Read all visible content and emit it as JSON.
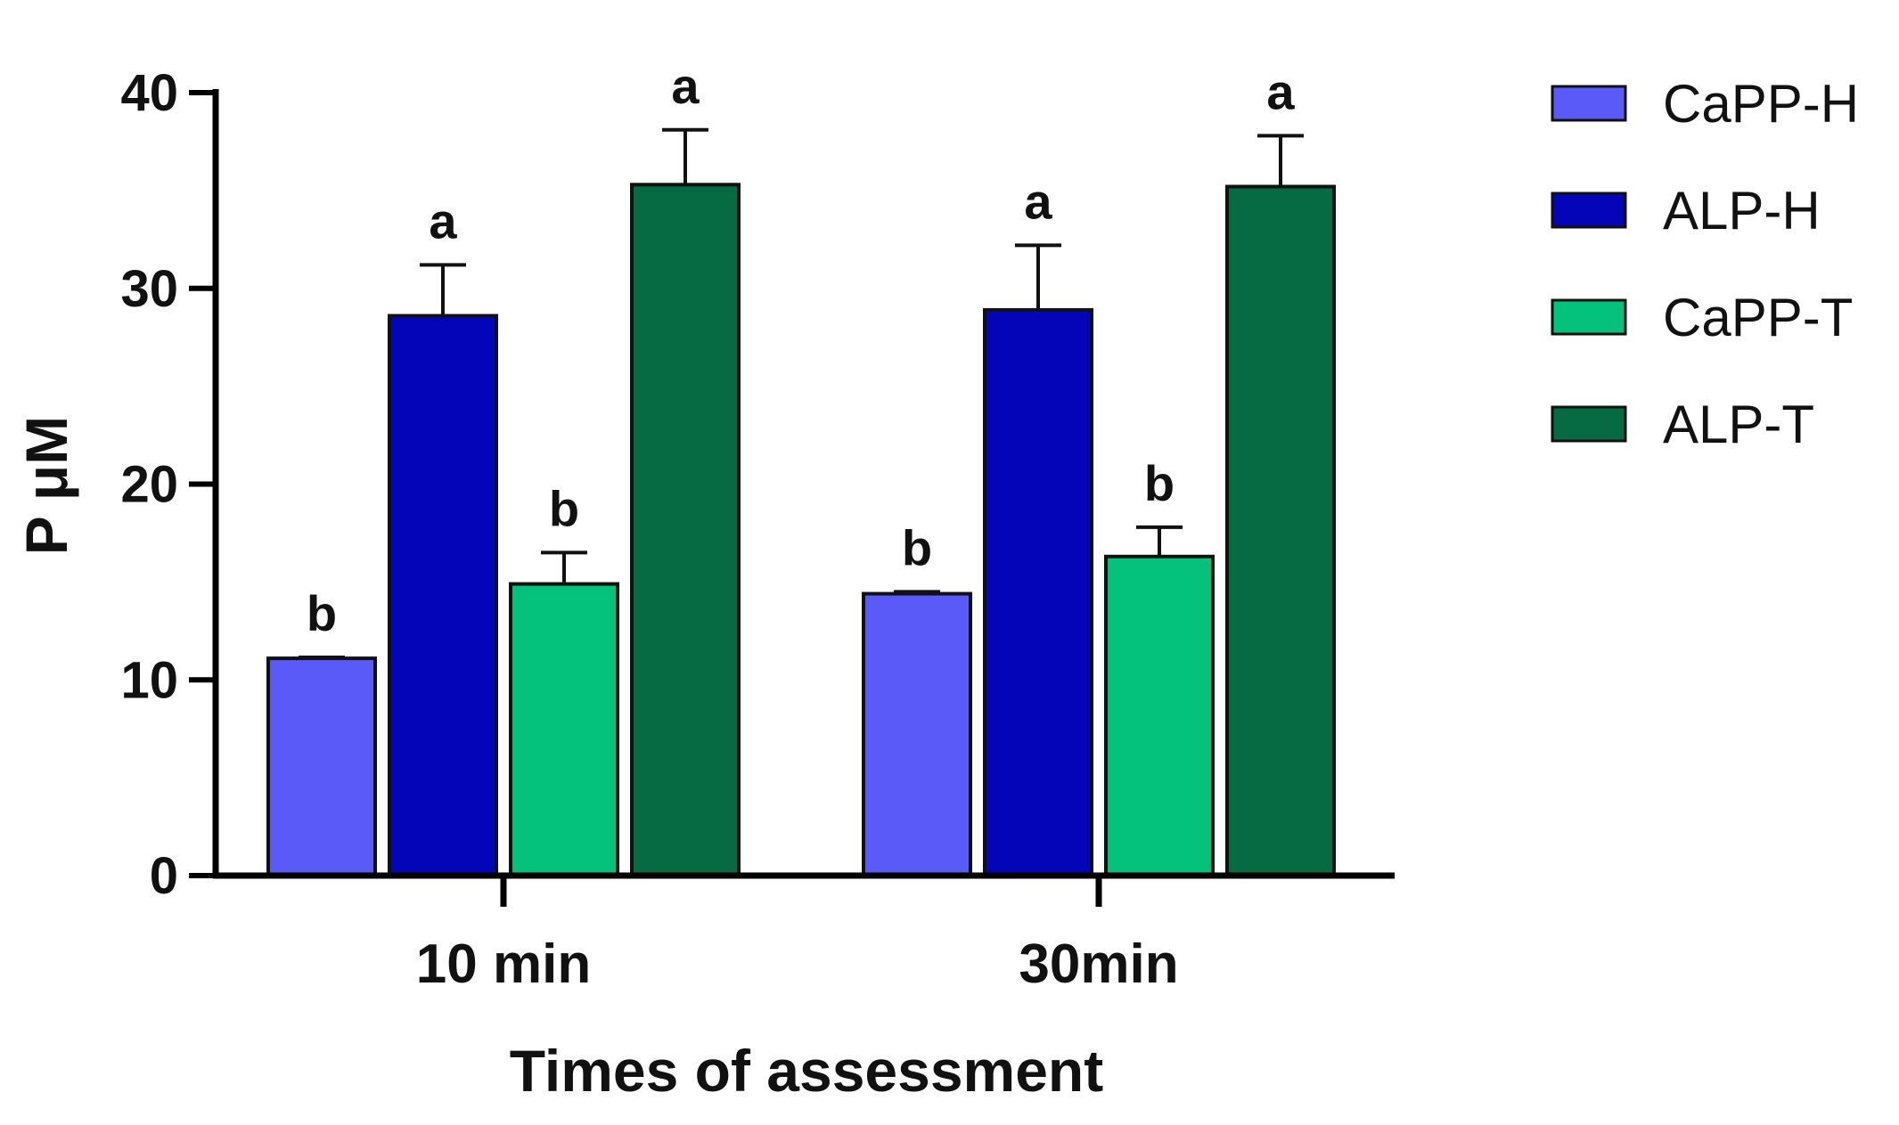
{
  "chart_data": {
    "type": "bar",
    "title": "",
    "xlabel": "Times of assessment",
    "ylabel": "P μM",
    "ylim": [
      0,
      40
    ],
    "yticks": [
      "0",
      "10",
      "20",
      "30",
      "40"
    ],
    "categories": [
      "10 min",
      "30min"
    ],
    "legend_position": "right",
    "grid": false,
    "series": [
      {
        "name": "CaPP-H",
        "color": "#5a5af8",
        "values": [
          11.1,
          14.4
        ],
        "errors": [
          0.05,
          0.1
        ],
        "letters": [
          "b",
          "b"
        ]
      },
      {
        "name": "ALP-H",
        "color": "#0404b8",
        "values": [
          28.6,
          28.9
        ],
        "errors": [
          2.6,
          3.3
        ],
        "letters": [
          "a",
          "a"
        ]
      },
      {
        "name": "CaPP-T",
        "color": "#04c17b",
        "values": [
          14.9,
          16.3
        ],
        "errors": [
          1.6,
          1.5
        ],
        "letters": [
          "b",
          "b"
        ]
      },
      {
        "name": "ALP-T",
        "color": "#066a42",
        "values": [
          35.3,
          35.2
        ],
        "errors": [
          2.8,
          2.6
        ],
        "letters": [
          "a",
          "a"
        ]
      }
    ]
  }
}
